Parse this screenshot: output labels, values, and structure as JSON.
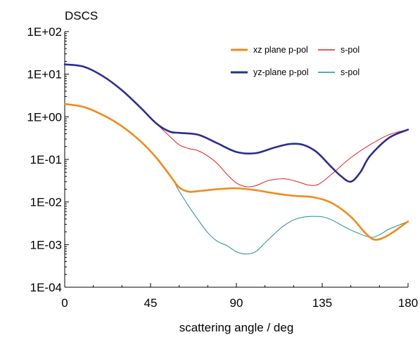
{
  "chart_data": {
    "type": "line",
    "title": "DSCS",
    "xlabel": "scattering angle / deg",
    "ylabel": "",
    "xlim": [
      0,
      180
    ],
    "ylim": [
      0.0001,
      100
    ],
    "yscale": "log",
    "grid": false,
    "legend_placement": "top-right",
    "x_ticks": [
      0,
      45,
      90,
      135,
      180
    ],
    "x_tick_labels": [
      "0",
      "45",
      "90",
      "135",
      "180"
    ],
    "y_ticks": [
      0.0001,
      0.001,
      0.01,
      0.1,
      1,
      10,
      100
    ],
    "y_tick_labels": [
      "1E-04",
      "1E-03",
      "1E-02",
      "1E-01",
      "1E+00",
      "1E+01",
      "1E+02"
    ],
    "series": [
      {
        "name": "xz plane p-pol",
        "color": "#f08a1c",
        "stroke": "thick",
        "x": [
          0,
          10,
          20,
          30,
          40,
          48,
          55,
          60,
          65,
          70,
          80,
          90,
          100,
          110,
          120,
          130,
          140,
          150,
          158,
          163,
          170,
          180
        ],
        "y": [
          2.0,
          1.7,
          1.1,
          0.6,
          0.26,
          0.11,
          0.043,
          0.022,
          0.0175,
          0.018,
          0.02,
          0.021,
          0.019,
          0.016,
          0.014,
          0.013,
          0.0095,
          0.0045,
          0.0018,
          0.0013,
          0.0017,
          0.0035
        ]
      },
      {
        "name": "s-pol",
        "color": "#e02020",
        "stroke": "thin",
        "x": [
          0,
          10,
          20,
          30,
          40,
          48,
          55,
          60,
          65,
          70,
          75,
          80,
          85,
          90,
          95,
          100,
          107,
          115,
          122,
          128,
          133,
          140,
          150,
          160,
          170,
          180
        ],
        "y": [
          17,
          15,
          9,
          4.2,
          1.6,
          0.7,
          0.35,
          0.22,
          0.18,
          0.16,
          0.12,
          0.08,
          0.045,
          0.028,
          0.023,
          0.024,
          0.032,
          0.035,
          0.03,
          0.025,
          0.026,
          0.045,
          0.11,
          0.22,
          0.38,
          0.5
        ]
      },
      {
        "name": "yz-plane p-pol",
        "color": "#2b2d8c",
        "stroke": "thick",
        "x": [
          0,
          10,
          20,
          30,
          40,
          48,
          55,
          60,
          70,
          80,
          90,
          100,
          110,
          118,
          125,
          132,
          140,
          145,
          150,
          155,
          160,
          170,
          180
        ],
        "y": [
          17,
          15,
          9,
          4.2,
          1.6,
          0.7,
          0.45,
          0.42,
          0.38,
          0.24,
          0.15,
          0.14,
          0.19,
          0.23,
          0.22,
          0.15,
          0.065,
          0.04,
          0.03,
          0.05,
          0.12,
          0.32,
          0.5
        ]
      },
      {
        "name": "s-pol",
        "color": "#22908a",
        "stroke": "thin",
        "x": [
          0,
          10,
          20,
          30,
          40,
          48,
          55,
          60,
          65,
          70,
          75,
          80,
          85,
          90,
          95,
          100,
          105,
          110,
          115,
          120,
          125,
          130,
          135,
          140,
          150,
          160,
          165,
          170,
          180
        ],
        "y": [
          2.0,
          1.7,
          1.1,
          0.6,
          0.26,
          0.11,
          0.045,
          0.018,
          0.008,
          0.0038,
          0.0019,
          0.0012,
          0.00095,
          0.00068,
          0.0006,
          0.00068,
          0.0011,
          0.0018,
          0.0028,
          0.0038,
          0.0044,
          0.0046,
          0.0045,
          0.0038,
          0.0022,
          0.0015,
          0.0017,
          0.0023,
          0.0035
        ]
      }
    ]
  }
}
